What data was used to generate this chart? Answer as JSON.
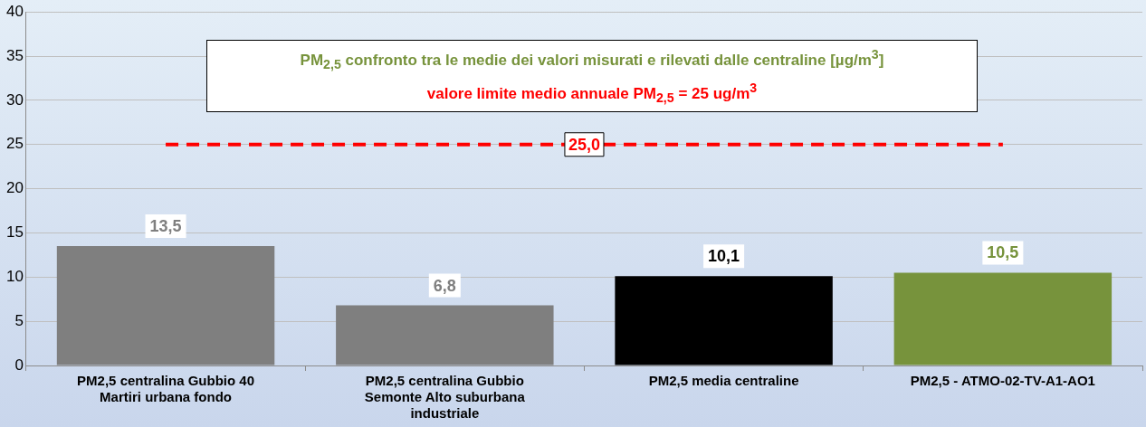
{
  "chart_data": {
    "type": "bar",
    "title": "PM$_{2,5}$ confronto tra le medie dei valori misurati e rilevati dalle centraline [µg/m$^{3}$]",
    "subtitle": "valore limite medio annuale PM$_{2,5}$ = 25 ug/m$^{3}$",
    "categories": [
      "PM2,5 centralina Gubbio 40 Martiri urbana fondo",
      "PM2,5 centralina Gubbio Semonte Alto suburbana industriale",
      "PM2,5 media centraline",
      "PM2,5 - ATMO-02-TV-A1-AO1"
    ],
    "values": [
      13.5,
      6.8,
      10.1,
      10.5
    ],
    "colors": [
      "#7f7f7f",
      "#7f7f7f",
      "#000000",
      "#77933c"
    ],
    "value_labels": [
      "13,5",
      "6,8",
      "10,1",
      "10,5"
    ],
    "ylim": [
      0,
      40
    ],
    "yticks": [
      0,
      5,
      10,
      15,
      20,
      25,
      30,
      35,
      40
    ],
    "grid": "y",
    "legend": false,
    "ref_lines": [
      {
        "axis": "y",
        "value": 25,
        "label": "25,0",
        "color": "#ff0000",
        "line_style": "dashed"
      }
    ]
  }
}
